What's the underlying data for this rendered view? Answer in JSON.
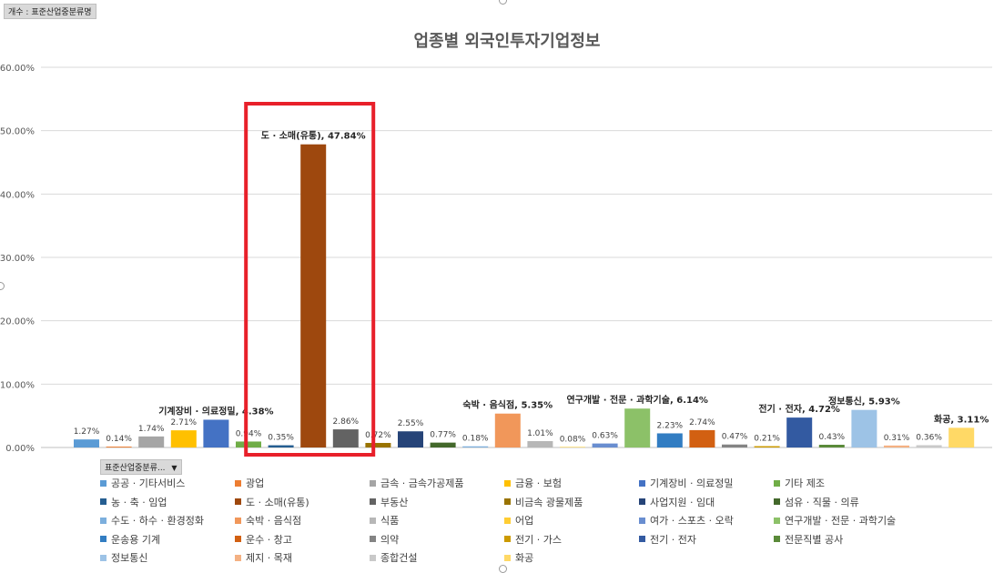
{
  "field_buttons": {
    "top": "개수 : 표준산업중분류명",
    "axis": "표준산업중분류..."
  },
  "axis_field_arrow": "▼",
  "chart_data": {
    "type": "bar",
    "title": "업종별 외국인투자기업정보",
    "ylim": [
      0,
      60
    ],
    "y_ticks": [
      "0.00%",
      "10.00%",
      "20.00%",
      "30.00%",
      "40.00%",
      "50.00%",
      "60.00%"
    ],
    "grid": true,
    "legend_position": "bottom",
    "categories": [
      "공공 · 기타서비스",
      "광업",
      "금속 · 금속가공제품",
      "금융 · 보험",
      "기계장비 · 의료정밀",
      "기타 제조",
      "농 · 축 · 임업",
      "도 · 소매(유통)",
      "부동산",
      "비금속 광물제품",
      "사업지원 · 임대",
      "섬유 · 직물 · 의류",
      "수도 · 하수 · 환경정화",
      "숙박 · 음식점",
      "식품",
      "어업",
      "여가 · 스포츠 · 오락",
      "연구개발 · 전문 · 과학기술",
      "운송용 기계",
      "운수 · 창고",
      "의약",
      "전기 · 가스",
      "전기 · 전자",
      "전문직별 공사",
      "정보통신",
      "제지 · 목재",
      "종합건설",
      "화공"
    ],
    "values": [
      1.27,
      0.14,
      1.74,
      2.71,
      4.38,
      0.94,
      0.35,
      47.84,
      2.86,
      0.72,
      2.55,
      0.77,
      0.18,
      5.35,
      1.01,
      0.08,
      0.63,
      6.14,
      2.23,
      2.74,
      0.47,
      0.21,
      4.72,
      0.43,
      5.93,
      0.31,
      0.36,
      3.11
    ],
    "labels": [
      "1.27%",
      "0.14%",
      "1.74%",
      "2.71%",
      "기계장비 · 의료정밀, 4.38%",
      "0.94%",
      "0.35%",
      "도 · 소매(유통), 47.84%",
      "2.86%",
      "0.72%",
      "2.55%",
      "0.77%",
      "0.18%",
      "숙박 · 음식점, 5.35%",
      "1.01%",
      "0.08%",
      "0.63%",
      "연구개발 · 전문 · 과학기술, 6.14%",
      "2.23%",
      "2.74%",
      "0.47%",
      "0.21%",
      "전기 · 전자, 4.72%",
      "0.43%",
      "정보통신, 5.93%",
      "0.31%",
      "0.36%",
      "화공, 3.11%"
    ],
    "colors": [
      "#5B9BD5",
      "#ED7D31",
      "#A5A5A5",
      "#FFC000",
      "#4472C4",
      "#70AD47",
      "#255E91",
      "#9E480E",
      "#636363",
      "#997300",
      "#264478",
      "#43682B",
      "#7CAFDD",
      "#F1975A",
      "#B7B7B7",
      "#FFCD33",
      "#698ED0",
      "#8CC168",
      "#327DC2",
      "#D26012",
      "#848484",
      "#CC9A00",
      "#335AA1",
      "#5A8A39",
      "#9DC3E6",
      "#F4B183",
      "#C9C9C9",
      "#FFD966"
    ],
    "highlight": {
      "category": "도 · 소매(유통)",
      "color": "#E8202A"
    }
  }
}
